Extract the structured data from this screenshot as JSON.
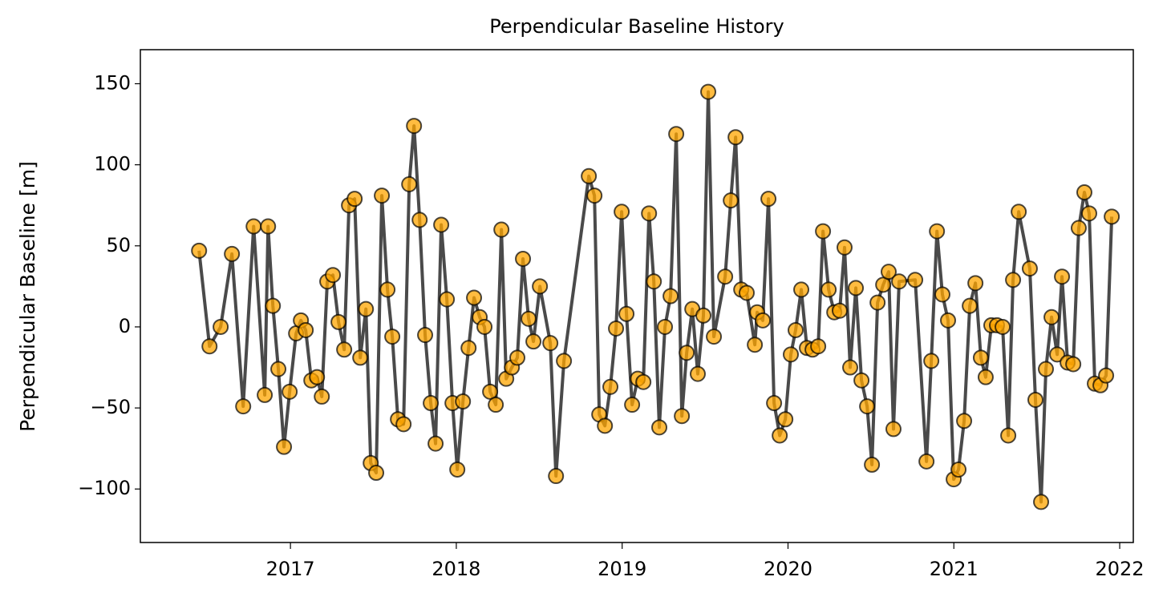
{
  "chart_data": {
    "type": "line",
    "title": "Perpendicular Baseline History",
    "ylabel": "Perpendicular Baseline [m]",
    "line_color": "#404040",
    "marker_color": "#ffa500",
    "marker_edge_color": "#000000",
    "x": [
      2016.449,
      2016.512,
      2016.579,
      2016.647,
      2016.715,
      2016.778,
      2016.845,
      2016.865,
      2016.894,
      2016.927,
      2016.961,
      2016.995,
      2017.034,
      2017.063,
      2017.092,
      2017.126,
      2017.16,
      2017.189,
      2017.222,
      2017.256,
      2017.29,
      2017.324,
      2017.353,
      2017.387,
      2017.421,
      2017.455,
      2017.484,
      2017.517,
      2017.551,
      2017.585,
      2017.614,
      2017.648,
      2017.682,
      2017.716,
      2017.745,
      2017.779,
      2017.812,
      2017.846,
      2017.875,
      2017.909,
      2017.943,
      2017.977,
      2018.006,
      2018.04,
      2018.074,
      2018.107,
      2018.141,
      2018.17,
      2018.204,
      2018.238,
      2018.272,
      2018.301,
      2018.335,
      2018.368,
      2018.402,
      2018.436,
      2018.465,
      2018.504,
      2018.567,
      2018.601,
      2018.649,
      2018.799,
      2018.833,
      2018.862,
      2018.896,
      2018.929,
      2018.963,
      2018.997,
      2019.026,
      2019.06,
      2019.094,
      2019.128,
      2019.162,
      2019.191,
      2019.224,
      2019.258,
      2019.292,
      2019.326,
      2019.36,
      2019.389,
      2019.423,
      2019.456,
      2019.49,
      2019.519,
      2019.553,
      2019.621,
      2019.655,
      2019.684,
      2019.718,
      2019.751,
      2019.8,
      2019.814,
      2019.848,
      2019.882,
      2019.916,
      2019.95,
      2019.984,
      2020.017,
      2020.046,
      2020.08,
      2020.114,
      2020.148,
      2020.182,
      2020.211,
      2020.245,
      2020.279,
      2020.312,
      2020.341,
      2020.375,
      2020.409,
      2020.443,
      2020.477,
      2020.506,
      2020.54,
      2020.574,
      2020.607,
      2020.636,
      2020.67,
      2020.767,
      2020.835,
      2020.864,
      2020.898,
      2020.931,
      2020.965,
      2020.999,
      2021.028,
      2021.062,
      2021.096,
      2021.13,
      2021.163,
      2021.192,
      2021.226,
      2021.26,
      2021.294,
      2021.328,
      2021.357,
      2021.391,
      2021.458,
      2021.492,
      2021.526,
      2021.555,
      2021.589,
      2021.623,
      2021.652,
      2021.686,
      2021.72,
      2021.753,
      2021.787,
      2021.816,
      2021.85,
      2021.884,
      2021.918,
      2021.952
    ],
    "values": [
      47,
      -12,
      0,
      45,
      -49,
      62,
      -42,
      62,
      13,
      -26,
      -74,
      -40,
      -4,
      4,
      -2,
      -33,
      -31,
      -43,
      28,
      32,
      3,
      -14,
      75,
      79,
      -19,
      11,
      -84,
      -90,
      81,
      23,
      -6,
      -57,
      -60,
      88,
      124,
      66,
      -5,
      -47,
      -72,
      63,
      17,
      -47,
      -88,
      -46,
      -13,
      18,
      6,
      0,
      -40,
      -48,
      60,
      -32,
      -25,
      -19,
      42,
      5,
      -9,
      25,
      -10,
      -92,
      -21,
      93,
      81,
      -54,
      -61,
      -37,
      -1,
      71,
      8,
      -48,
      -32,
      -34,
      70,
      28,
      -62,
      0,
      19,
      119,
      -55,
      -16,
      11,
      -29,
      7,
      145,
      -6,
      31,
      78,
      117,
      23,
      21,
      -11,
      9,
      4,
      79,
      -47,
      -67,
      -57,
      -17,
      -2,
      23,
      -13,
      -14,
      -12,
      59,
      23,
      9,
      10,
      49,
      -25,
      24,
      -33,
      -49,
      -85,
      15,
      26,
      34,
      -63,
      28,
      29,
      -83,
      -21,
      59,
      20,
      4,
      -94,
      -88,
      -58,
      13,
      27,
      -19,
      -31,
      1,
      1,
      0,
      -67,
      29,
      71,
      36,
      -45,
      -108,
      -26,
      6,
      -17,
      31,
      -22,
      -23,
      61,
      83,
      70,
      -35,
      -36,
      -30,
      68
    ],
    "xlim": [
      2016.095,
      2022.082
    ],
    "ylim": [
      -133,
      171
    ],
    "xticks": [
      2017,
      2018,
      2019,
      2020,
      2021,
      2022
    ],
    "yticks": [
      {
        "value": -100,
        "label": "−100"
      },
      {
        "value": -50,
        "label": "−50"
      },
      0,
      50,
      100,
      150
    ]
  }
}
